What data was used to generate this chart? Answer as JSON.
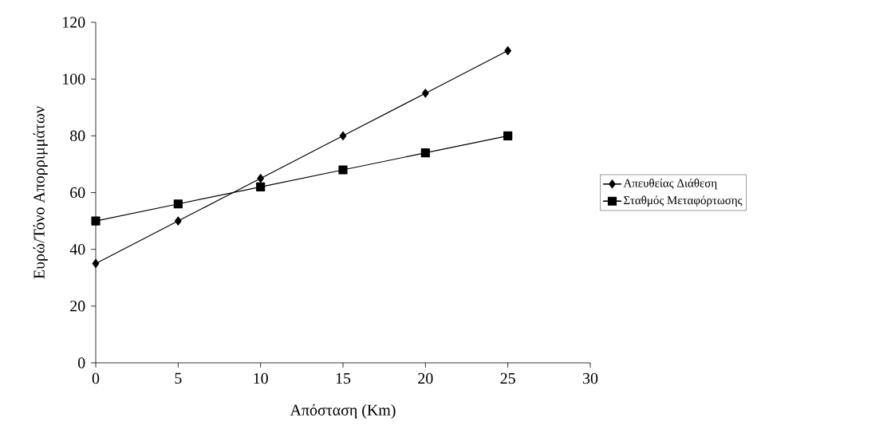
{
  "chart_data": {
    "type": "line",
    "xlabel": "Απόσταση (Km)",
    "ylabel": "Ευρώ/Τόνο Απορριμμάτων",
    "x": [
      0,
      5,
      10,
      15,
      20,
      25
    ],
    "series": [
      {
        "name": "Απευθείας Διάθεση",
        "color": "#000000",
        "marker": "diamond",
        "values": [
          35,
          50,
          65,
          80,
          95,
          110
        ]
      },
      {
        "name": "Σταθμός Μεταφόρτωσης",
        "color": "#000000",
        "marker": "square",
        "values": [
          50,
          56,
          62,
          68,
          74,
          80
        ]
      }
    ],
    "xlim": [
      0,
      30
    ],
    "xticks": [
      0,
      5,
      10,
      15,
      20,
      25,
      30
    ],
    "ylim": [
      0,
      120
    ],
    "yticks": [
      0,
      20,
      40,
      60,
      80,
      100,
      120
    ],
    "grid": false,
    "legend": "right",
    "line_style": "solid"
  }
}
